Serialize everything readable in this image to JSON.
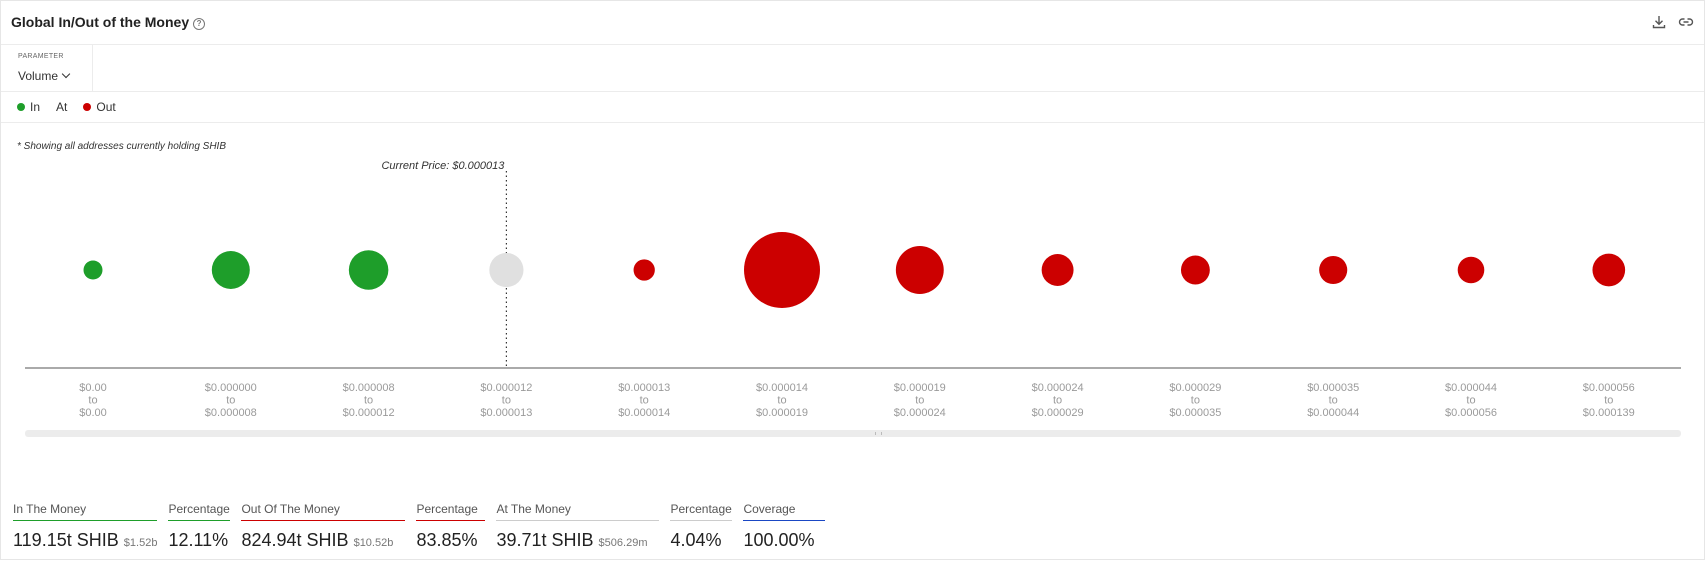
{
  "header": {
    "title": "Global In/Out of the Money",
    "help_icon": "help-circle-icon",
    "download_icon": "download-icon",
    "link_icon": "link-icon"
  },
  "parameter": {
    "label": "PARAMETER",
    "value": "Volume"
  },
  "legend": {
    "in": {
      "label": "In",
      "color": "#1e9e2a"
    },
    "at": {
      "label": "At",
      "color": "#e0e0e0"
    },
    "out": {
      "label": "Out",
      "color": "#cc0000"
    }
  },
  "note": "* Showing all addresses currently holding SHIB",
  "chart_data": {
    "type": "scatter",
    "description_bubble": "bubble size = volume",
    "current_price_label": "Current Price: $0.000013",
    "current_price_index": 3,
    "colors": {
      "in": "#1e9e2a",
      "at": "#e0e0e0",
      "out": "#cc0000"
    },
    "categories": [
      {
        "from": "$0.00",
        "to": "$0.00",
        "status": "in",
        "size": 0.25
      },
      {
        "from": "$0.000000",
        "to": "$0.000008",
        "status": "in",
        "size": 0.5
      },
      {
        "from": "$0.000008",
        "to": "$0.000012",
        "status": "in",
        "size": 0.52
      },
      {
        "from": "$0.000012",
        "to": "$0.000013",
        "status": "at",
        "size": 0.45
      },
      {
        "from": "$0.000013",
        "to": "$0.000014",
        "status": "out",
        "size": 0.28
      },
      {
        "from": "$0.000014",
        "to": "$0.000019",
        "status": "out",
        "size": 1.0
      },
      {
        "from": "$0.000019",
        "to": "$0.000024",
        "status": "out",
        "size": 0.63
      },
      {
        "from": "$0.000024",
        "to": "$0.000029",
        "status": "out",
        "size": 0.42
      },
      {
        "from": "$0.000029",
        "to": "$0.000035",
        "status": "out",
        "size": 0.38
      },
      {
        "from": "$0.000035",
        "to": "$0.000044",
        "status": "out",
        "size": 0.37
      },
      {
        "from": "$0.000044",
        "to": "$0.000056",
        "status": "out",
        "size": 0.35
      },
      {
        "from": "$0.000056",
        "to": "$0.000139",
        "status": "out",
        "size": 0.43
      }
    ],
    "range_joiner": "to"
  },
  "stats": [
    {
      "label": "In The Money",
      "value": "119.15t SHIB",
      "sub": "$1.52b",
      "underline": "#1e9e2a"
    },
    {
      "label": "Percentage",
      "value": "12.11%",
      "sub": "",
      "underline": "#1e9e2a"
    },
    {
      "label": "Out Of The Money",
      "value": "824.94t SHIB",
      "sub": "$10.52b",
      "underline": "#cc0000"
    },
    {
      "label": "Percentage",
      "value": "83.85%",
      "sub": "",
      "underline": "#cc0000"
    },
    {
      "label": "At The Money",
      "value": "39.71t SHIB",
      "sub": "$506.29m",
      "underline": "#cccccc"
    },
    {
      "label": "Percentage",
      "value": "4.04%",
      "sub": "",
      "underline": "#cccccc"
    },
    {
      "label": "Coverage",
      "value": "100.00%",
      "sub": "",
      "underline": "#1a47c4"
    }
  ]
}
